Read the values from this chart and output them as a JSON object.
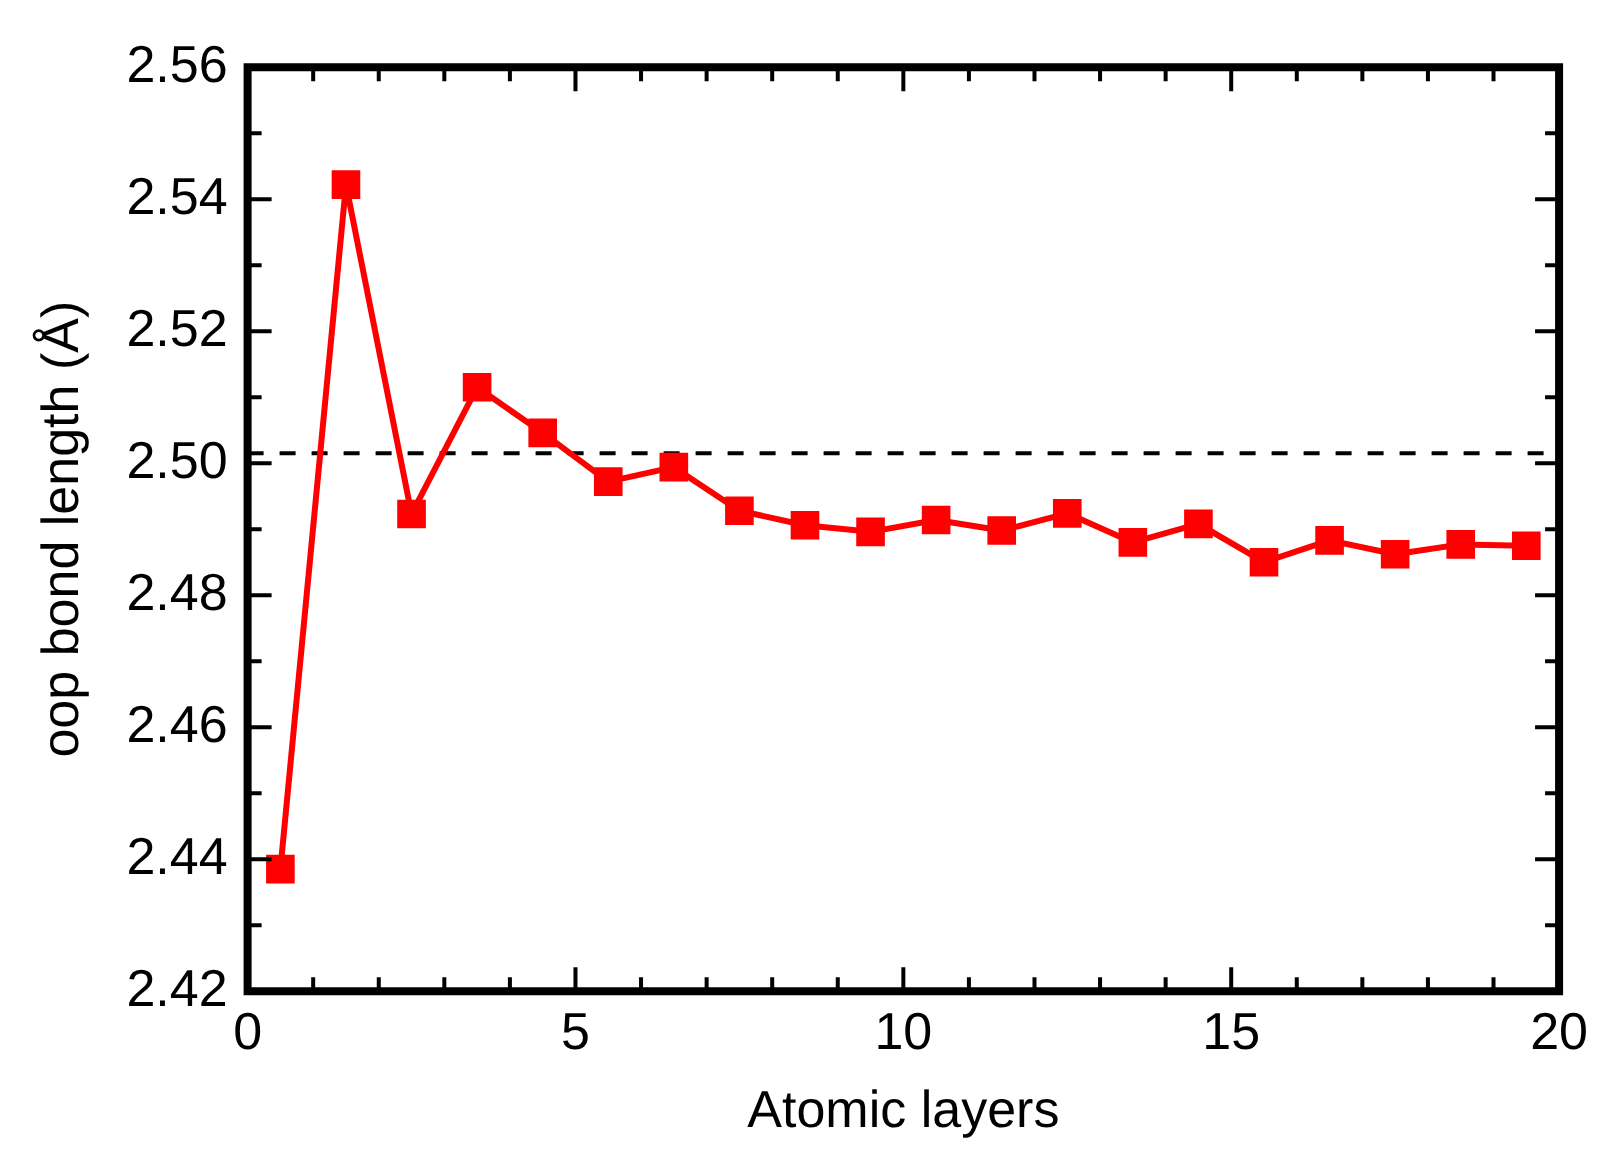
{
  "chart_data": {
    "type": "line",
    "xlabel": "Atomic layers",
    "ylabel": "oop bond length (Å)",
    "x": [
      0.5,
      1.5,
      2.5,
      3.5,
      4.5,
      5.5,
      6.5,
      7.5,
      8.5,
      9.5,
      10.5,
      11.5,
      12.5,
      13.5,
      14.5,
      15.5,
      16.5,
      17.5,
      18.5,
      19.5
    ],
    "series": [
      {
        "color": "#ff0000",
        "values": [
          2.4385,
          2.5422,
          2.4923,
          2.5115,
          2.5046,
          2.4972,
          2.4994,
          2.4928,
          2.4906,
          2.4896,
          2.4914,
          2.4898,
          2.4924,
          2.488,
          2.4908,
          2.485,
          2.4883,
          2.4862,
          2.4877,
          2.4875
        ]
      }
    ],
    "xlim": [
      0,
      20
    ],
    "xticks": [
      0,
      {
        "value": 1,
        "label": null
      },
      {
        "value": 2,
        "label": null
      },
      {
        "value": 3,
        "label": null
      },
      {
        "value": 4,
        "label": null
      },
      5,
      {
        "value": 6,
        "label": null
      },
      {
        "value": 7,
        "label": null
      },
      {
        "value": 8,
        "label": null
      },
      {
        "value": 9,
        "label": null
      },
      10,
      {
        "value": 11,
        "label": null
      },
      {
        "value": 12,
        "label": null
      },
      {
        "value": 13,
        "label": null
      },
      {
        "value": 14,
        "label": null
      },
      15,
      {
        "value": 16,
        "label": null
      },
      {
        "value": 17,
        "label": null
      },
      {
        "value": 18,
        "label": null
      },
      {
        "value": 19,
        "label": null
      },
      20
    ],
    "ylim": [
      2.42,
      2.56
    ],
    "yticks": [
      {
        "value": 2.42,
        "label": "2.42"
      },
      {
        "value": 2.43,
        "label": null
      },
      {
        "value": 2.44,
        "label": "2.44"
      },
      {
        "value": 2.45,
        "label": null
      },
      {
        "value": 2.46,
        "label": "2.46"
      },
      {
        "value": 2.47,
        "label": null
      },
      {
        "value": 2.48,
        "label": "2.48"
      },
      {
        "value": 2.49,
        "label": null
      },
      {
        "value": 2.5,
        "label": "2.50"
      },
      {
        "value": 2.51,
        "label": null
      },
      {
        "value": 2.52,
        "label": "2.52"
      },
      {
        "value": 2.53,
        "label": null
      },
      {
        "value": 2.54,
        "label": "2.54"
      },
      {
        "value": 2.55,
        "label": null
      },
      {
        "value": 2.56,
        "label": "2.56"
      }
    ],
    "ref_lines": [
      {
        "axis": "y",
        "value": 2.5015,
        "color": "#000000",
        "line_style": "dashed"
      }
    ],
    "grid": false,
    "legend": false,
    "marker": "square",
    "line_style": "solid"
  }
}
